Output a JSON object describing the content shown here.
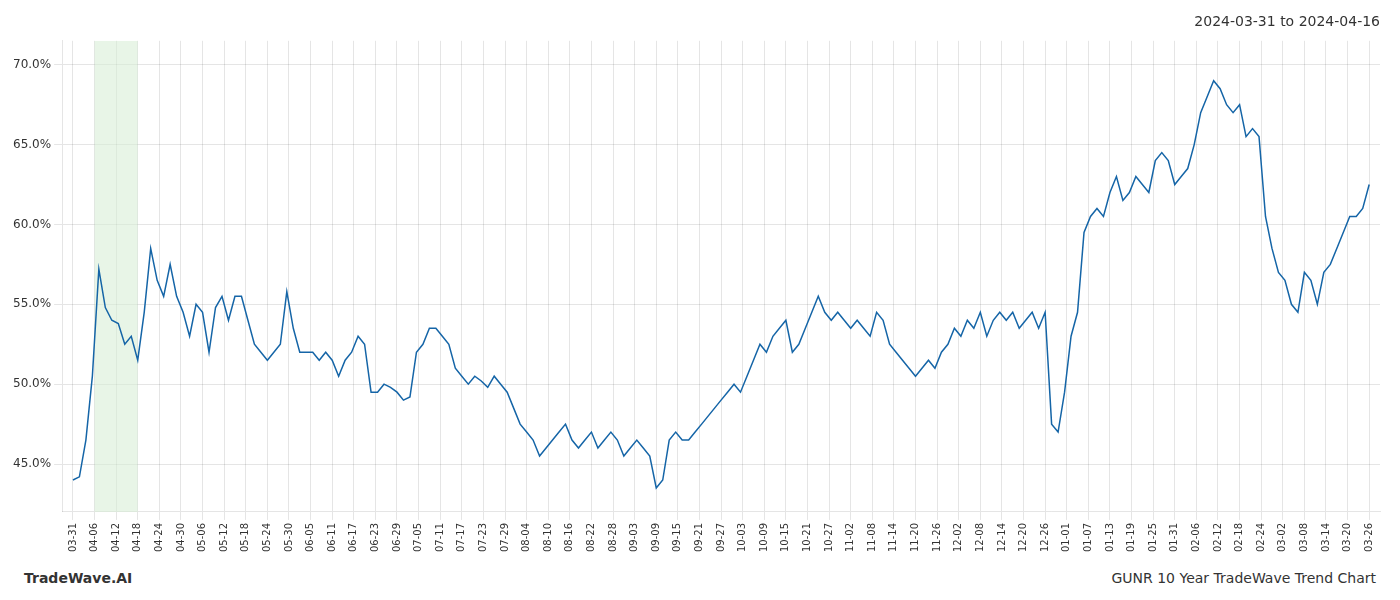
{
  "chart_data": {
    "type": "line",
    "title": "2024-03-31 to 2024-04-16",
    "annotations": [
      {
        "text": "TradeWave.AI"
      },
      {
        "text": "GUNR 10 Year TradeWave Trend Chart"
      }
    ],
    "color": "#1565a7",
    "grid": true,
    "highlight": {
      "x_start": 1,
      "x_end": 3,
      "color": "#d6ecd4"
    },
    "xlim": [
      -0.5,
      60.5
    ],
    "xticks": [
      {
        "value": 0,
        "label": "03-31"
      },
      {
        "value": 1,
        "label": "04-06"
      },
      {
        "value": 2,
        "label": "04-12"
      },
      {
        "value": 3,
        "label": "04-18"
      },
      {
        "value": 4,
        "label": "04-24"
      },
      {
        "value": 5,
        "label": "04-30"
      },
      {
        "value": 6,
        "label": "05-06"
      },
      {
        "value": 7,
        "label": "05-12"
      },
      {
        "value": 8,
        "label": "05-18"
      },
      {
        "value": 9,
        "label": "05-24"
      },
      {
        "value": 10,
        "label": "05-30"
      },
      {
        "value": 11,
        "label": "06-05"
      },
      {
        "value": 12,
        "label": "06-11"
      },
      {
        "value": 13,
        "label": "06-17"
      },
      {
        "value": 14,
        "label": "06-23"
      },
      {
        "value": 15,
        "label": "06-29"
      },
      {
        "value": 16,
        "label": "07-05"
      },
      {
        "value": 17,
        "label": "07-11"
      },
      {
        "value": 18,
        "label": "07-17"
      },
      {
        "value": 19,
        "label": "07-23"
      },
      {
        "value": 20,
        "label": "07-29"
      },
      {
        "value": 21,
        "label": "08-04"
      },
      {
        "value": 22,
        "label": "08-10"
      },
      {
        "value": 23,
        "label": "08-16"
      },
      {
        "value": 24,
        "label": "08-22"
      },
      {
        "value": 25,
        "label": "08-28"
      },
      {
        "value": 26,
        "label": "09-03"
      },
      {
        "value": 27,
        "label": "09-09"
      },
      {
        "value": 28,
        "label": "09-15"
      },
      {
        "value": 29,
        "label": "09-21"
      },
      {
        "value": 30,
        "label": "09-27"
      },
      {
        "value": 31,
        "label": "10-03"
      },
      {
        "value": 32,
        "label": "10-09"
      },
      {
        "value": 33,
        "label": "10-15"
      },
      {
        "value": 34,
        "label": "10-21"
      },
      {
        "value": 35,
        "label": "10-27"
      },
      {
        "value": 36,
        "label": "11-02"
      },
      {
        "value": 37,
        "label": "11-08"
      },
      {
        "value": 38,
        "label": "11-14"
      },
      {
        "value": 39,
        "label": "11-20"
      },
      {
        "value": 40,
        "label": "11-26"
      },
      {
        "value": 41,
        "label": "12-02"
      },
      {
        "value": 42,
        "label": "12-08"
      },
      {
        "value": 43,
        "label": "12-14"
      },
      {
        "value": 44,
        "label": "12-20"
      },
      {
        "value": 45,
        "label": "12-26"
      },
      {
        "value": 46,
        "label": "01-01"
      },
      {
        "value": 47,
        "label": "01-07"
      },
      {
        "value": 48,
        "label": "01-13"
      },
      {
        "value": 49,
        "label": "01-19"
      },
      {
        "value": 50,
        "label": "01-25"
      },
      {
        "value": 51,
        "label": "01-31"
      },
      {
        "value": 52,
        "label": "02-06"
      },
      {
        "value": 53,
        "label": "02-12"
      },
      {
        "value": 54,
        "label": "02-18"
      },
      {
        "value": 55,
        "label": "02-24"
      },
      {
        "value": 56,
        "label": "03-02"
      },
      {
        "value": 57,
        "label": "03-08"
      },
      {
        "value": 58,
        "label": "03-14"
      },
      {
        "value": 59,
        "label": "03-20"
      },
      {
        "value": 60,
        "label": "03-26"
      }
    ],
    "ylim": [
      42.0,
      71.5
    ],
    "yticks": [
      {
        "value": 45.0,
        "label": "45.0%"
      },
      {
        "value": 50.0,
        "label": "50.0%"
      },
      {
        "value": 55.0,
        "label": "55.0%"
      },
      {
        "value": 60.0,
        "label": "60.0%"
      },
      {
        "value": 65.0,
        "label": "65.0%"
      },
      {
        "value": 70.0,
        "label": "70.0%"
      }
    ],
    "x": [
      0,
      0.3,
      0.6,
      0.9,
      1.2,
      1.5,
      1.8,
      2.1,
      2.4,
      2.7,
      3,
      3.3,
      3.6,
      3.9,
      4.2,
      4.5,
      4.8,
      5.1,
      5.4,
      5.7,
      6,
      6.3,
      6.6,
      6.9,
      7.2,
      7.5,
      7.8,
      8.1,
      8.4,
      8.7,
      9,
      9.3,
      9.6,
      9.9,
      10.2,
      10.5,
      10.8,
      11.1,
      11.4,
      11.7,
      12,
      12.3,
      12.6,
      12.9,
      13.2,
      13.5,
      13.8,
      14.1,
      14.4,
      14.7,
      15,
      15.3,
      15.6,
      15.9,
      16.2,
      16.5,
      16.8,
      17.1,
      17.4,
      17.7,
      18,
      18.3,
      18.6,
      18.9,
      19.2,
      19.5,
      19.8,
      20.1,
      20.4,
      20.7,
      21,
      21.3,
      21.6,
      21.9,
      22.2,
      22.5,
      22.8,
      23.1,
      23.4,
      23.7,
      24,
      24.3,
      24.6,
      24.9,
      25.2,
      25.5,
      25.8,
      26.1,
      26.4,
      26.7,
      27,
      27.3,
      27.6,
      27.9,
      28.2,
      28.5,
      28.8,
      29.1,
      29.4,
      29.7,
      30,
      30.3,
      30.6,
      30.9,
      31.2,
      31.5,
      31.8,
      32.1,
      32.4,
      32.7,
      33,
      33.3,
      33.6,
      33.9,
      34.2,
      34.5,
      34.8,
      35.1,
      35.4,
      35.7,
      36,
      36.3,
      36.6,
      36.9,
      37.2,
      37.5,
      37.8,
      38.1,
      38.4,
      38.7,
      39,
      39.3,
      39.6,
      39.9,
      40.2,
      40.5,
      40.8,
      41.1,
      41.4,
      41.7,
      42,
      42.3,
      42.6,
      42.9,
      43.2,
      43.5,
      43.8,
      44.1,
      44.4,
      44.7,
      45,
      45.3,
      45.6,
      45.9,
      46.2,
      46.5,
      46.8,
      47.1,
      47.4,
      47.7,
      48,
      48.3,
      48.6,
      48.9,
      49.2,
      49.5,
      49.8,
      50.1,
      50.4,
      50.7,
      51,
      51.3,
      51.6,
      51.9,
      52.2,
      52.5,
      52.8,
      53.1,
      53.4,
      53.7,
      54,
      54.3,
      54.6,
      54.9,
      55.2,
      55.5,
      55.8,
      56.1,
      56.4,
      56.7,
      57,
      57.3,
      57.6,
      57.9,
      58.2,
      58.5,
      58.8,
      59.1,
      59.4,
      59.7,
      60
    ],
    "values": [
      44.0,
      44.2,
      46.5,
      50.5,
      57.2,
      54.8,
      54.0,
      53.8,
      52.5,
      53.0,
      51.5,
      54.5,
      58.5,
      56.5,
      55.5,
      57.5,
      55.5,
      54.5,
      53.0,
      55.0,
      54.5,
      52.0,
      54.8,
      55.5,
      54.0,
      55.5,
      55.5,
      54.0,
      52.5,
      52.0,
      51.5,
      52.0,
      52.5,
      55.8,
      53.5,
      52.0,
      52.0,
      52.0,
      51.5,
      52.0,
      51.5,
      50.5,
      51.5,
      52.0,
      53.0,
      52.5,
      49.5,
      49.5,
      50.0,
      49.8,
      49.5,
      49.0,
      49.2,
      52.0,
      52.5,
      53.5,
      53.5,
      53.0,
      52.5,
      51.0,
      50.5,
      50.0,
      50.5,
      50.2,
      49.8,
      50.5,
      50.0,
      49.5,
      48.5,
      47.5,
      47.0,
      46.5,
      45.5,
      46.0,
      46.5,
      47.0,
      47.5,
      46.5,
      46.0,
      46.5,
      47.0,
      46.0,
      46.5,
      47.0,
      46.5,
      45.5,
      46.0,
      46.5,
      46.0,
      45.5,
      43.5,
      44.0,
      46.5,
      47.0,
      46.5,
      46.5,
      47.0,
      47.5,
      48.0,
      48.5,
      49.0,
      49.5,
      50.0,
      49.5,
      50.5,
      51.5,
      52.5,
      52.0,
      53.0,
      53.5,
      54.0,
      52.0,
      52.5,
      53.5,
      54.5,
      55.5,
      54.5,
      54.0,
      54.5,
      54.0,
      53.5,
      54.0,
      53.5,
      53.0,
      54.5,
      54.0,
      52.5,
      52.0,
      51.5,
      51.0,
      50.5,
      51.0,
      51.5,
      51.0,
      52.0,
      52.5,
      53.5,
      53.0,
      54.0,
      53.5,
      54.5,
      53.0,
      54.0,
      54.5,
      54.0,
      54.5,
      53.5,
      54.0,
      54.5,
      53.5,
      54.5,
      47.5,
      47.0,
      49.5,
      53.0,
      54.5,
      59.5,
      60.5,
      61.0,
      60.5,
      62.0,
      63.0,
      61.5,
      62.0,
      63.0,
      62.5,
      62.0,
      64.0,
      64.5,
      64.0,
      62.5,
      63.0,
      63.5,
      65.0,
      67.0,
      68.0,
      69.0,
      68.5,
      67.5,
      67.0,
      67.5,
      65.5,
      66.0,
      65.5,
      60.5,
      58.5,
      57.0,
      56.5,
      55.0,
      54.5,
      57.0,
      56.5,
      55.0,
      57.0,
      57.5,
      58.5,
      59.5,
      60.5,
      60.5,
      61.0,
      62.5
    ]
  }
}
